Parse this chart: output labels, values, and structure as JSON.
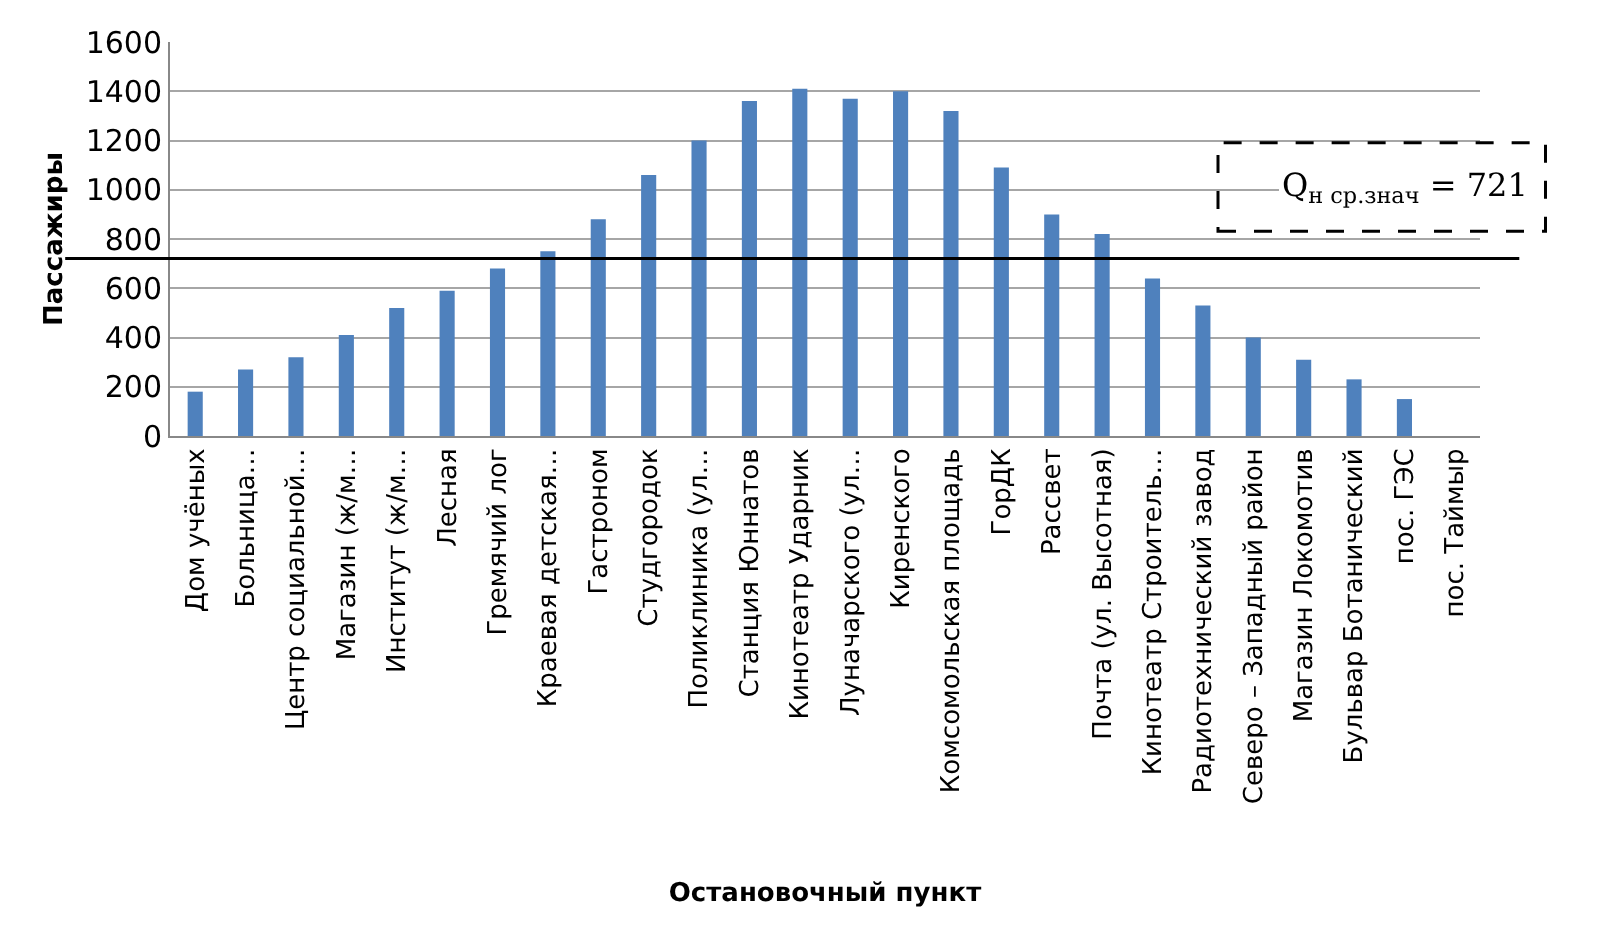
{
  "chart_data": {
    "type": "bar",
    "xlabel": "Остановочный пункт",
    "ylabel": "Пассажиры",
    "categories": [
      "Дом учёных",
      "Больница…",
      "Центр социальной…",
      "Магазин (ж/м…",
      "Институт (ж/м…",
      "Лесная",
      "Гремячий лог",
      "Краевая детская…",
      "Гастроном",
      "Студгородок",
      "Поликлиника (ул…",
      "Станция Юннатов",
      "Кинотеатр Ударник",
      "Луначарского (ул…",
      "Киренского",
      "Комсомольская площадь",
      "ГорДК",
      "Рассвет",
      "Почта (ул. Высотная)",
      "Кинотеатр Строитель…",
      "Радиотехнический завод",
      "Северо – Западный район",
      "Магазин Локомотив",
      "Бульвар Ботанический",
      "пос. ГЭС",
      "пос. Таймыр"
    ],
    "values": [
      180,
      270,
      320,
      410,
      520,
      590,
      680,
      750,
      880,
      1060,
      1200,
      1360,
      1410,
      1370,
      1400,
      1320,
      1090,
      900,
      820,
      640,
      530,
      400,
      310,
      230,
      150,
      null
    ],
    "color": "#4f81bd",
    "ylim": [
      0,
      1600
    ],
    "yticks": [
      0,
      200,
      400,
      600,
      800,
      1000,
      1200,
      1400,
      1600
    ],
    "grid": "y",
    "ref_lines": [
      {
        "axis": "y",
        "value": 721,
        "label": "Q$_{н ср.знач}$ = 721",
        "color": "#000000",
        "line_style": "solid"
      }
    ]
  }
}
